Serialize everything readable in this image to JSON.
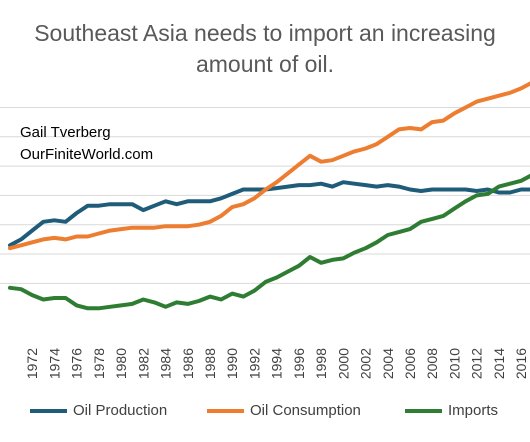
{
  "title_lines": [
    "Southeast Asia needs to import an increasing",
    "amount of oil."
  ],
  "author": {
    "name": "Gail Tverberg",
    "site": "OurFiniteWorld.com"
  },
  "chart_data": {
    "type": "line",
    "title": "Southeast Asia needs to import an increasing amount of oil.",
    "x": [
      1970,
      1971,
      1972,
      1973,
      1974,
      1975,
      1976,
      1977,
      1978,
      1979,
      1980,
      1981,
      1982,
      1983,
      1984,
      1985,
      1986,
      1987,
      1988,
      1989,
      1990,
      1991,
      1992,
      1993,
      1994,
      1995,
      1996,
      1997,
      1998,
      1999,
      2000,
      2001,
      2002,
      2003,
      2004,
      2005,
      2006,
      2007,
      2008,
      2009,
      2010,
      2011,
      2012,
      2013,
      2014,
      2015,
      2016,
      2017
    ],
    "x_tick_labels": [
      "1972",
      "1974",
      "1976",
      "1978",
      "1980",
      "1982",
      "1984",
      "1986",
      "1988",
      "1990",
      "1992",
      "1994",
      "1996",
      "1998",
      "2000",
      "2002",
      "2004",
      "2006",
      "2008",
      "2010",
      "2012",
      "2014",
      "2016"
    ],
    "ylim": [
      -2.0,
      6.8
    ],
    "gridlines_y": [
      0,
      1,
      2,
      3,
      4,
      5,
      6
    ],
    "grid": true,
    "legend_position": "bottom",
    "series": [
      {
        "name": "Oil Production",
        "color": "#1f5c7a",
        "values": [
          1.3,
          1.5,
          1.8,
          2.1,
          2.15,
          2.1,
          2.4,
          2.65,
          2.65,
          2.7,
          2.7,
          2.7,
          2.5,
          2.65,
          2.8,
          2.7,
          2.8,
          2.8,
          2.8,
          2.9,
          3.05,
          3.2,
          3.2,
          3.2,
          3.25,
          3.3,
          3.35,
          3.35,
          3.4,
          3.3,
          3.45,
          3.4,
          3.35,
          3.3,
          3.35,
          3.3,
          3.2,
          3.15,
          3.2,
          3.2,
          3.2,
          3.2,
          3.15,
          3.2,
          3.1,
          3.1,
          3.2,
          3.2
        ]
      },
      {
        "name": "Oil Consumption",
        "color": "#ed7d31",
        "values": [
          1.2,
          1.3,
          1.4,
          1.5,
          1.55,
          1.5,
          1.6,
          1.6,
          1.7,
          1.8,
          1.85,
          1.9,
          1.9,
          1.9,
          1.95,
          1.95,
          1.95,
          2.0,
          2.1,
          2.3,
          2.6,
          2.7,
          2.9,
          3.2,
          3.45,
          3.75,
          4.05,
          4.35,
          4.15,
          4.2,
          4.35,
          4.5,
          4.6,
          4.75,
          5.0,
          5.25,
          5.3,
          5.25,
          5.5,
          5.55,
          5.8,
          6.0,
          6.2,
          6.3,
          6.4,
          6.5,
          6.65,
          6.85
        ]
      },
      {
        "name": "Imports",
        "color": "#2e7d32",
        "values": [
          -0.15,
          -0.2,
          -0.4,
          -0.55,
          -0.5,
          -0.5,
          -0.75,
          -0.85,
          -0.85,
          -0.8,
          -0.75,
          -0.7,
          -0.55,
          -0.65,
          -0.8,
          -0.65,
          -0.7,
          -0.6,
          -0.45,
          -0.55,
          -0.35,
          -0.45,
          -0.25,
          0.05,
          0.2,
          0.4,
          0.6,
          0.9,
          0.7,
          0.8,
          0.85,
          1.05,
          1.2,
          1.4,
          1.65,
          1.75,
          1.85,
          2.1,
          2.2,
          2.3,
          2.55,
          2.8,
          3.0,
          3.05,
          3.3,
          3.4,
          3.5,
          3.7
        ]
      }
    ]
  }
}
